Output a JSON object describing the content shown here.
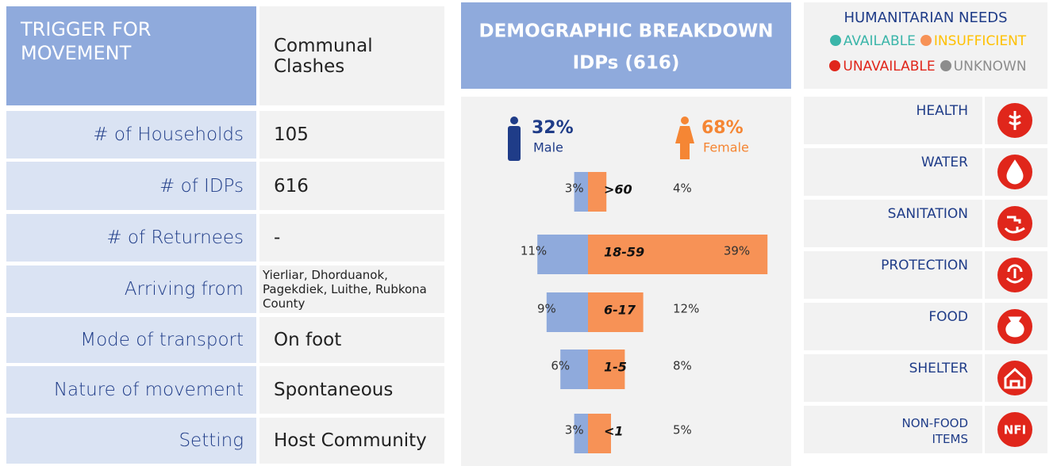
{
  "trigger": {
    "label": "TRIGGER FOR MOVEMENT",
    "value": "Communal Clashes"
  },
  "rows": [
    {
      "label": "# of Households",
      "value": "105"
    },
    {
      "label": "# of IDPs",
      "value": "616"
    },
    {
      "label": "# of Returnees",
      "value": "-"
    },
    {
      "label": "Arriving from",
      "value": "Yierliar, Dhorduanok, Pagekdiek, Luithe, Rubkona County"
    },
    {
      "label": "Mode of transport",
      "value": "On foot"
    },
    {
      "label": "Nature of movement",
      "value": "Spontaneous"
    },
    {
      "label": "Setting",
      "value": "Host Community"
    }
  ],
  "demographic": {
    "title": "DEMOGRAPHIC BREAKDOWN",
    "subtitle": "IDPs (616)",
    "male": {
      "percent": "32%",
      "label": "Male",
      "color": "#1f3c88"
    },
    "female": {
      "percent": "68%",
      "label": "Female",
      "color": "#f58634"
    },
    "chart_data": {
      "type": "bar",
      "orientation": "horizontal",
      "categories": [
        ">60",
        "18-59",
        "6-17",
        "1-5",
        "<1"
      ],
      "series": [
        {
          "name": "Male",
          "color": "#8faadc",
          "values": [
            3,
            11,
            9,
            6,
            3
          ],
          "value_labels": [
            "3%",
            "11%",
            "9%",
            "6%",
            "3%"
          ]
        },
        {
          "name": "Female",
          "color": "#f79256",
          "values": [
            4,
            39,
            12,
            8,
            5
          ],
          "value_labels": [
            "4%",
            "39%",
            "12%",
            "8%",
            "5%"
          ]
        }
      ]
    }
  },
  "needs": {
    "title": "HUMANITARIAN NEEDS",
    "legend": [
      {
        "name": "AVAILABLE",
        "color": "#3ab5a9",
        "text_color": "#3ab5a9"
      },
      {
        "name": "INSUFFICIENT",
        "color": "#f79256",
        "text_color": "#ffc000"
      },
      {
        "name": "UNAVAILABLE",
        "color": "#e0261b",
        "text_color": "#e0261b"
      },
      {
        "name": "UNKNOWN",
        "color": "#8c8c8c",
        "text_color": "#8c8c8c"
      }
    ],
    "items": [
      {
        "label": "HEALTH",
        "status": "UNAVAILABLE"
      },
      {
        "label": "WATER",
        "status": "UNAVAILABLE"
      },
      {
        "label": "SANITATION",
        "status": "UNAVAILABLE"
      },
      {
        "label": "PROTECTION",
        "status": "UNAVAILABLE"
      },
      {
        "label": "FOOD",
        "status": "UNAVAILABLE"
      },
      {
        "label": "SHELTER",
        "status": "UNAVAILABLE"
      },
      {
        "label": "NON-FOOD ITEMS",
        "status": "UNAVAILABLE",
        "icon_text": "NFI"
      }
    ]
  }
}
